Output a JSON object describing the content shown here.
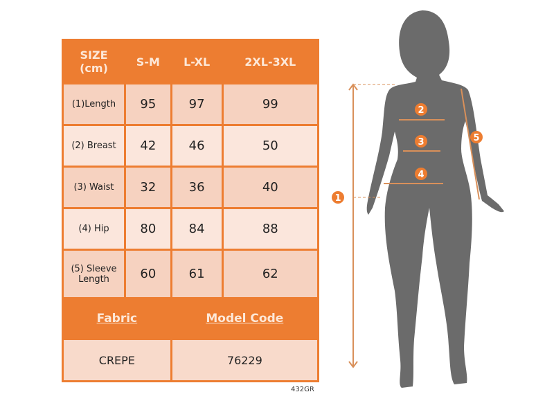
{
  "table": {
    "header": [
      "SIZE\n(cm)",
      "S-M",
      "L-XL",
      "2XL-3XL"
    ],
    "size_label_line1": "SIZE",
    "size_label_line2": "(cm)",
    "rows": [
      {
        "label": "(1)Length",
        "values": [
          "95",
          "97",
          "99"
        ]
      },
      {
        "label": "(2) Breast",
        "values": [
          "42",
          "46",
          "50"
        ]
      },
      {
        "label": "(3) Waist",
        "values": [
          "32",
          "36",
          "40"
        ]
      },
      {
        "label": "(4) Hip",
        "values": [
          "80",
          "84",
          "88"
        ]
      },
      {
        "label_line1": "(5) Sleeve",
        "label_line2": "Length",
        "values": [
          "60",
          "61",
          "62"
        ]
      }
    ],
    "footer_headers": [
      "Fabric",
      "Model Code"
    ],
    "footer_values": [
      "CREPE",
      "76229"
    ]
  },
  "product_code": "432GR",
  "figure": {
    "markers": [
      "1",
      "2",
      "3",
      "4",
      "5"
    ],
    "silhouette_color": "#6b6b6b",
    "accent_color": "#ED7D31"
  }
}
